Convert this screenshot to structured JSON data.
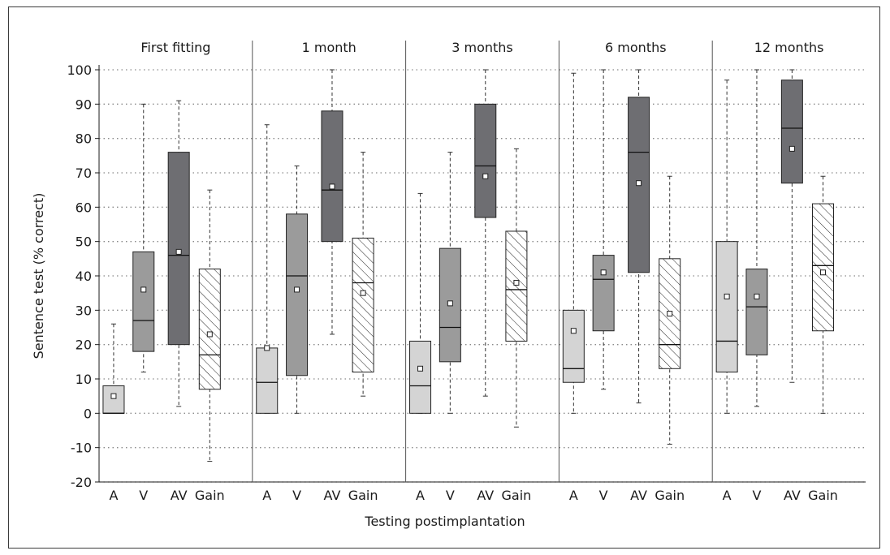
{
  "chart_data": {
    "type": "box",
    "xlabel": "Testing postimplantation",
    "ylabel": "Sentence test (% correct)",
    "ylim": [
      -20,
      100
    ],
    "yticks": [
      -20,
      -10,
      0,
      10,
      20,
      30,
      40,
      50,
      60,
      70,
      80,
      90,
      100
    ],
    "grid": "horizontal-dotted",
    "conditions": [
      "A",
      "V",
      "AV",
      "Gain"
    ],
    "condition_colors": {
      "A": "#d4d4d4",
      "V": "#9b9b9b",
      "AV": "#6e6e72",
      "Gain": "#ffffff"
    },
    "panels": [
      {
        "name": "First fitting",
        "boxes": [
          {
            "condition": "A",
            "min": 0,
            "q1": 0,
            "median": 0,
            "q3": 8,
            "max": 26,
            "mean": 5
          },
          {
            "condition": "V",
            "min": 12,
            "q1": 18,
            "median": 27,
            "q3": 47,
            "max": 90,
            "mean": 36
          },
          {
            "condition": "AV",
            "min": 2,
            "q1": 20,
            "median": 46,
            "q3": 76,
            "max": 91,
            "mean": 47
          },
          {
            "condition": "Gain",
            "min": -14,
            "q1": 7,
            "median": 17,
            "q3": 42,
            "max": 65,
            "mean": 23
          }
        ]
      },
      {
        "name": "1 month",
        "boxes": [
          {
            "condition": "A",
            "min": 0,
            "q1": 0,
            "median": 9,
            "q3": 19,
            "max": 84,
            "mean": 19
          },
          {
            "condition": "V",
            "min": 0,
            "q1": 11,
            "median": 40,
            "q3": 58,
            "max": 72,
            "mean": 36
          },
          {
            "condition": "AV",
            "min": 23,
            "q1": 50,
            "median": 65,
            "q3": 88,
            "max": 100,
            "mean": 66
          },
          {
            "condition": "Gain",
            "min": 5,
            "q1": 12,
            "median": 38,
            "q3": 51,
            "max": 76,
            "mean": 35
          }
        ]
      },
      {
        "name": "3 months",
        "boxes": [
          {
            "condition": "A",
            "min": 0,
            "q1": 0,
            "median": 8,
            "q3": 21,
            "max": 64,
            "mean": 13
          },
          {
            "condition": "V",
            "min": 0,
            "q1": 15,
            "median": 25,
            "q3": 48,
            "max": 76,
            "mean": 32
          },
          {
            "condition": "AV",
            "min": 5,
            "q1": 57,
            "median": 72,
            "q3": 90,
            "max": 100,
            "mean": 69
          },
          {
            "condition": "Gain",
            "min": -4,
            "q1": 21,
            "median": 36,
            "q3": 53,
            "max": 77,
            "mean": 38
          }
        ]
      },
      {
        "name": "6 months",
        "boxes": [
          {
            "condition": "A",
            "min": 0,
            "q1": 9,
            "median": 13,
            "q3": 30,
            "max": 99,
            "mean": 24
          },
          {
            "condition": "V",
            "min": 7,
            "q1": 24,
            "median": 39,
            "q3": 46,
            "max": 100,
            "mean": 41
          },
          {
            "condition": "AV",
            "min": 3,
            "q1": 41,
            "median": 76,
            "q3": 92,
            "max": 100,
            "mean": 67
          },
          {
            "condition": "Gain",
            "min": -9,
            "q1": 13,
            "median": 20,
            "q3": 45,
            "max": 69,
            "mean": 29
          }
        ]
      },
      {
        "name": "12 months",
        "boxes": [
          {
            "condition": "A",
            "min": 0,
            "q1": 12,
            "median": 21,
            "q3": 50,
            "max": 97,
            "mean": 34
          },
          {
            "condition": "V",
            "min": 2,
            "q1": 17,
            "median": 31,
            "q3": 42,
            "max": 100,
            "mean": 34
          },
          {
            "condition": "AV",
            "min": 9,
            "q1": 67,
            "median": 83,
            "q3": 97,
            "max": 100,
            "mean": 77
          },
          {
            "condition": "Gain",
            "min": 0,
            "q1": 24,
            "median": 43,
            "q3": 61,
            "max": 69,
            "mean": 41
          }
        ]
      }
    ]
  }
}
